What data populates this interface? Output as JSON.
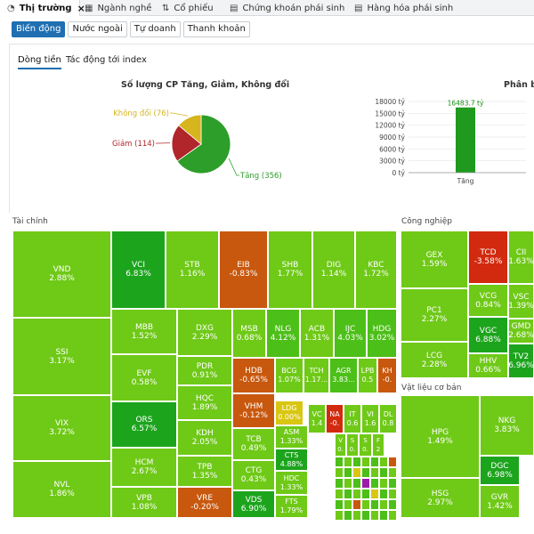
{
  "nav": {
    "tabs": [
      {
        "label": "Thị trường",
        "icon": "pie-chart-icon",
        "active": true
      },
      {
        "label": "Ngành nghề",
        "icon": "table-icon"
      },
      {
        "label": "Cổ phiếu",
        "icon": "sliders-icon"
      },
      {
        "label": "Chứng khoán phái sinh",
        "icon": "document-icon"
      },
      {
        "label": "Hàng hóa phái sinh",
        "icon": "document-icon"
      }
    ],
    "close_glyph": "×"
  },
  "subtabs": [
    "Biến động",
    "Nước ngoài",
    "Tự doanh",
    "Thanh khoản"
  ],
  "inner_tabs": [
    "Dòng tiền",
    "Tác động tới index"
  ],
  "pie": {
    "title": "Số lượng CP Tăng, Giảm, Không đổi",
    "labels": [
      "Tăng (356)",
      "Giảm (114)",
      "Không đổi (76)"
    ]
  },
  "bar": {
    "title": "Phân bổ",
    "yticks": [
      "18000 tỷ",
      "15000 tỷ",
      "12000 tỷ",
      "9000 tỷ",
      "6000 tỷ",
      "3000 tỷ",
      "0 tỷ"
    ],
    "value_label": "16483.7 tỷ",
    "category": "Tăng"
  },
  "chart_data": [
    {
      "type": "pie",
      "title": "Số lượng CP Tăng, Giảm, Không đổi",
      "categories": [
        "Tăng",
        "Giảm",
        "Không đổi"
      ],
      "values": [
        356,
        114,
        76
      ],
      "colors": [
        "#2e9e2a",
        "#b0262a",
        "#d6b51e"
      ]
    },
    {
      "type": "bar",
      "title": "Phân bổ",
      "categories": [
        "Tăng"
      ],
      "values": [
        16483.7
      ],
      "ylim": [
        0,
        18000
      ],
      "colors": [
        "#1f9a1f"
      ]
    }
  ],
  "sections": {
    "tai_chinh": "Tài chính",
    "cong_nghiep": "Công nghiệp",
    "vat_lieu": "Vật liệu cơ bản"
  },
  "colors": {
    "up_strong": "#1da41d",
    "up": "#4cbf18",
    "up_light": "#6fc917",
    "flat": "#d9c611",
    "down": "#c8580e",
    "down_strong": "#d22a0e",
    "ceiling_purple": "#9b1da9"
  },
  "tiles": {
    "VND": [
      "VND",
      "2.88%"
    ],
    "SSI": [
      "SSI",
      "3.17%"
    ],
    "VIX": [
      "VIX",
      "3.72%"
    ],
    "NVL": [
      "NVL",
      "1.86%"
    ],
    "VCI": [
      "VCI",
      "6.83%"
    ],
    "STB": [
      "STB",
      "1.16%"
    ],
    "EIB": [
      "EIB",
      "-0.83%"
    ],
    "SHB": [
      "SHB",
      "1.77%"
    ],
    "DIG": [
      "DIG",
      "1.14%"
    ],
    "KBC": [
      "KBC",
      "1.72%"
    ],
    "MBB": [
      "MBB",
      "1.52%"
    ],
    "EVF": [
      "EVF",
      "0.58%"
    ],
    "ORS": [
      "ORS",
      "6.57%"
    ],
    "HCM": [
      "HCM",
      "2.67%"
    ],
    "VPB": [
      "VPB",
      "1.08%"
    ],
    "DXG": [
      "DXG",
      "2.29%"
    ],
    "PDR": [
      "PDR",
      "0.91%"
    ],
    "HQC": [
      "HQC",
      "1.89%"
    ],
    "KDH": [
      "KDH",
      "2.05%"
    ],
    "TPB": [
      "TPB",
      "1.35%"
    ],
    "VRE": [
      "VRE",
      "-0.20%"
    ],
    "MSB": [
      "MSB",
      "0.68%"
    ],
    "NLG": [
      "NLG",
      "4.12%"
    ],
    "ACB": [
      "ACB",
      "1.31%"
    ],
    "IJC": [
      "IJC",
      "4.03%"
    ],
    "HDG": [
      "HDG",
      "3.02%"
    ],
    "HDB": [
      "HDB",
      "-0.65%"
    ],
    "VHM": [
      "VHM",
      "-0.12%"
    ],
    "TCB": [
      "TCB",
      "0.49%"
    ],
    "CTG": [
      "CTG",
      "0.43%"
    ],
    "VDS": [
      "VDS",
      "6.90%"
    ],
    "BCG": [
      "BCG",
      "1.07%"
    ],
    "TCH": [
      "TCH",
      "1.17..."
    ],
    "AGR": [
      "AGR",
      "3.83..."
    ],
    "LPB": [
      "LPB",
      "0.5"
    ],
    "KH": [
      "KH",
      "-0."
    ],
    "LDG": [
      "LDG",
      "0.00%"
    ],
    "VC": [
      "VC",
      "1.4"
    ],
    "NA": [
      "NA",
      "-0."
    ],
    "IT": [
      "IT",
      "0.6"
    ],
    "VI": [
      "VI",
      "1.6"
    ],
    "DL": [
      "DL",
      "0.8"
    ],
    "ASM": [
      "ASM",
      "1.33%"
    ],
    "CTS": [
      "CTS",
      "4.88%"
    ],
    "HDC": [
      "HDC",
      "1.33%"
    ],
    "FTS": [
      "FTS",
      "1.79%"
    ],
    "V": [
      "V",
      "0."
    ],
    "S1": [
      "S",
      "0."
    ],
    "S2": [
      "S",
      "0."
    ],
    "F": [
      "F",
      "2"
    ],
    "GEX": [
      "GEX",
      "1.59%"
    ],
    "TCD": [
      "TCD",
      "-3.58%"
    ],
    "CII": [
      "CII",
      "1.63%"
    ],
    "PC1": [
      "PC1",
      "2.27%"
    ],
    "VCG": [
      "VCG",
      "0.84%"
    ],
    "VSC": [
      "VSC",
      "1.39%"
    ],
    "VGC": [
      "VGC",
      "6.88%"
    ],
    "GMD": [
      "GMD",
      "2.68%"
    ],
    "LCG": [
      "LCG",
      "2.28%"
    ],
    "HHV": [
      "HHV",
      "0.66%"
    ],
    "TV2": [
      "TV2",
      "6.96%"
    ],
    "HPG": [
      "HPG",
      "1.49%"
    ],
    "NKG": [
      "NKG",
      "3.83%"
    ],
    "DGC": [
      "DGC",
      "6.98%"
    ],
    "HSG": [
      "HSG",
      "2.97%"
    ],
    "GVR": [
      "GVR",
      "1.42%"
    ]
  }
}
